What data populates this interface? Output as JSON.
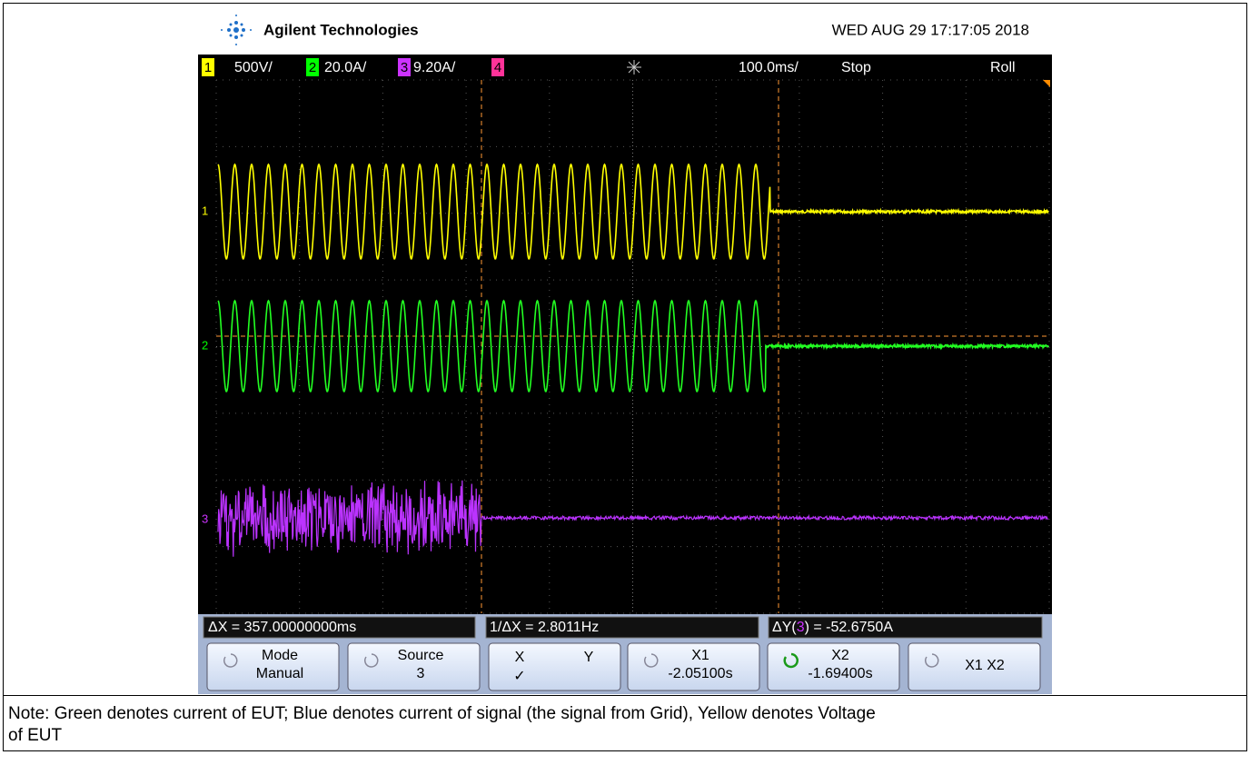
{
  "header": {
    "brand": "Agilent Technologies",
    "datetime": "WED AUG 29 17:17:05 2018"
  },
  "channels": [
    {
      "number": "1",
      "scale": "500V/"
    },
    {
      "number": "2",
      "scale": "20.0A/"
    },
    {
      "number": "3",
      "scale": "9.20A/"
    },
    {
      "number": "4"
    }
  ],
  "timebase": "100.0ms/",
  "run_state": "Stop",
  "mode": "Roll",
  "trace_markers": [
    "1",
    "2",
    "3"
  ],
  "measurements": {
    "delta_x": "ΔX = 357.00000000ms",
    "inverse_delta_x": "1/ΔX = 2.8011Hz",
    "delta_y": {
      "prefix": "ΔY(",
      "source": "3",
      "suffix": ") = -52.6750A"
    }
  },
  "softkeys": [
    {
      "label": "Mode",
      "value": "Manual"
    },
    {
      "label": "Source",
      "value": "3"
    },
    {
      "x": "X",
      "y": "Y",
      "check": "✓"
    },
    {
      "label": "X1",
      "value": "-2.05100s"
    },
    {
      "label": "X2",
      "value": "-1.69400s"
    },
    {
      "label": "X1 X2"
    }
  ],
  "note": {
    "lines": [
      "Note: Green denotes current of EUT;  Blue denotes current of signal (the signal from Grid), Yellow denotes Voltage",
      "of EUT"
    ]
  }
}
